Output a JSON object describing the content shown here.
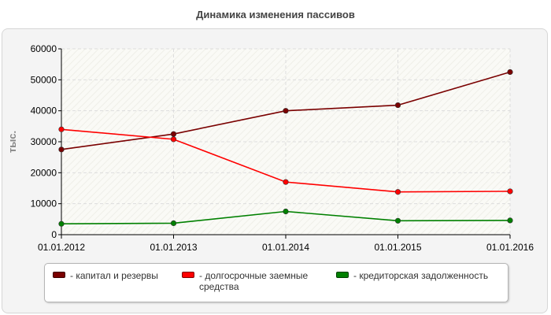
{
  "title": "Динамика изменения пассивов",
  "chart_data": {
    "type": "line",
    "title": "Динамика изменения пассивов",
    "xlabel": "",
    "ylabel": "тыс.",
    "categories": [
      "01.01.2012",
      "01.01.2013",
      "01.01.2014",
      "01.01.2015",
      "01.01.2016"
    ],
    "ylim": [
      0,
      60000
    ],
    "yticks": [
      "0",
      "10000",
      "20000",
      "30000",
      "40000",
      "50000",
      "60000"
    ],
    "grid": true,
    "legend_position": "bottom",
    "series": [
      {
        "name": "- капитал и резервы",
        "color": "#7a0000",
        "values": [
          27500,
          32500,
          40000,
          41800,
          52500
        ]
      },
      {
        "name": "- долгосрочные заемные средства",
        "color": "#ff0000",
        "values": [
          34000,
          30800,
          17000,
          13800,
          14000
        ]
      },
      {
        "name": "- кредиторская задолженность",
        "color": "#008000",
        "values": [
          3500,
          3700,
          7500,
          4500,
          4600
        ]
      }
    ]
  },
  "legend": {
    "item1": "- капитал и резервы",
    "item2_line1": "- долгосрочные заемные",
    "item2_line2": "средства",
    "item3": "- кредиторская задолженность"
  }
}
